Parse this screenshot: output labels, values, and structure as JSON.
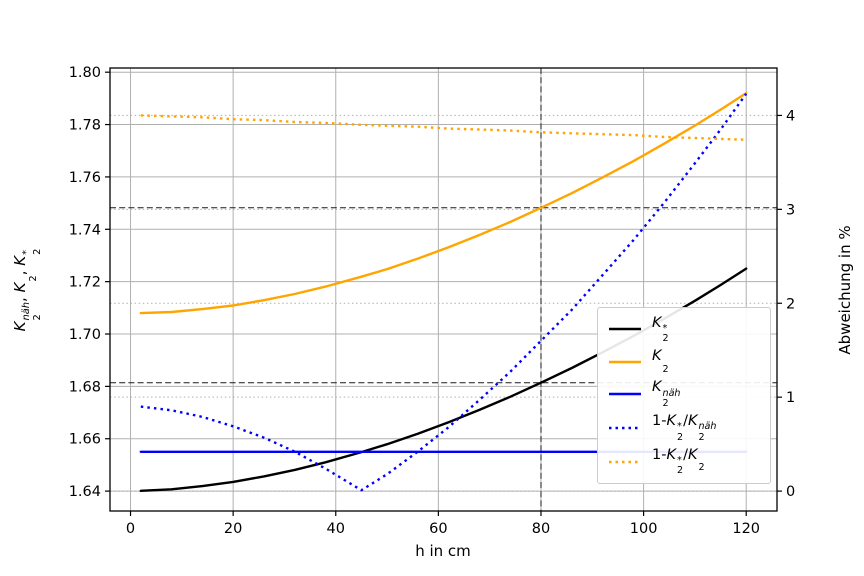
{
  "chart_data": {
    "type": "line",
    "xlabel": "h in cm",
    "ylabel_right": "Abweichung in %",
    "ylabel_left_segments": [
      {
        "t": "K",
        "it": 1,
        "sub": "2",
        "sup": "näh",
        "supit": 1
      },
      {
        "t": ", "
      },
      {
        "t": "K",
        "it": 1,
        "sub": "2",
        "sup": ""
      },
      {
        "t": ", "
      },
      {
        "t": "K",
        "it": 1,
        "sub": "2",
        "sup": "*"
      }
    ],
    "x_ticks": [
      0,
      20,
      40,
      60,
      80,
      100,
      120
    ],
    "y_ticks_left": [
      "1.64",
      "1.66",
      "1.68",
      "1.70",
      "1.72",
      "1.74",
      "1.76",
      "1.78",
      "1.80"
    ],
    "y_ticks_right": [
      "0",
      "1",
      "2",
      "3",
      "4"
    ],
    "xlim": [
      -4,
      126
    ],
    "ylim_left": [
      1.6324,
      1.8016
    ],
    "ylim_right": [
      -0.212,
      4.505
    ],
    "grid": true,
    "grid_color": "#b0b0b0",
    "legend_position": "lower right",
    "reference_lines": {
      "style": "dashed",
      "color": "#1a1a1a",
      "horizontal_left_axis": [
        1.7482,
        1.6814
      ],
      "vertical": [
        80
      ]
    },
    "x": [
      2,
      8,
      14,
      20,
      26,
      32,
      38,
      45,
      50,
      56,
      62,
      68,
      74,
      80,
      86,
      92,
      98,
      104,
      110,
      115,
      120
    ],
    "series": [
      {
        "name": "K2_star",
        "axis": "left",
        "color": "#000000",
        "linestyle": "solid",
        "label_segments": [
          {
            "t": "K",
            "it": 1,
            "sub": "2",
            "sup": "*"
          }
        ],
        "values": [
          1.6401,
          1.6407,
          1.6419,
          1.6435,
          1.6456,
          1.6481,
          1.651,
          1.6549,
          1.6579,
          1.6619,
          1.6663,
          1.671,
          1.676,
          1.6814,
          1.687,
          1.693,
          1.6992,
          1.7058,
          1.7127,
          1.7187,
          1.725
        ]
      },
      {
        "name": "K2",
        "axis": "left",
        "color": "#ffa500",
        "linestyle": "solid",
        "label_segments": [
          {
            "t": "K",
            "it": 1,
            "sub": "2",
            "sup": ""
          }
        ],
        "values": [
          1.708,
          1.7084,
          1.7095,
          1.7109,
          1.7129,
          1.7153,
          1.7181,
          1.7219,
          1.7248,
          1.7288,
          1.7331,
          1.7378,
          1.7428,
          1.7482,
          1.7538,
          1.7598,
          1.766,
          1.7727,
          1.7796,
          1.7857,
          1.792
        ]
      },
      {
        "name": "K2_naeh",
        "axis": "left",
        "color": "#0000ff",
        "linestyle": "solid",
        "label_segments": [
          {
            "t": "K",
            "it": 1,
            "sub": "2",
            "sup": "näh",
            "supit": 1
          }
        ],
        "values": [
          1.655,
          1.655,
          1.655,
          1.655,
          1.655,
          1.655,
          1.655,
          1.655,
          1.655,
          1.655,
          1.655,
          1.655,
          1.655,
          1.655,
          1.655,
          1.655,
          1.655,
          1.655,
          1.655,
          1.655,
          1.655
        ]
      },
      {
        "name": "abw_K2_naeh",
        "axis": "right",
        "color": "#0000ff",
        "linestyle": "dotted",
        "label_segments": [
          {
            "t": "1-"
          },
          {
            "t": "K",
            "it": 1,
            "sub": "2",
            "sup": "*"
          },
          {
            "t": "/"
          },
          {
            "t": "K",
            "it": 1,
            "sub": "2",
            "sup": "näh",
            "supit": 1
          }
        ],
        "values": [
          0.9,
          0.86,
          0.79,
          0.69,
          0.57,
          0.42,
          0.24,
          0.01,
          0.18,
          0.42,
          0.68,
          0.97,
          1.27,
          1.6,
          1.93,
          2.3,
          2.67,
          3.07,
          3.49,
          3.85,
          4.23
        ]
      },
      {
        "name": "abw_K2",
        "axis": "right",
        "color": "#ffa500",
        "linestyle": "dotted",
        "label_segments": [
          {
            "t": "1-"
          },
          {
            "t": "K",
            "it": 1,
            "sub": "2",
            "sup": "*"
          },
          {
            "t": "/"
          },
          {
            "t": "K",
            "it": 1,
            "sub": "2",
            "sup": ""
          }
        ],
        "values": [
          4.0,
          3.99,
          3.98,
          3.96,
          3.95,
          3.93,
          3.92,
          3.9,
          3.89,
          3.88,
          3.86,
          3.85,
          3.84,
          3.82,
          3.81,
          3.8,
          3.79,
          3.77,
          3.76,
          3.75,
          3.74
        ]
      }
    ]
  }
}
